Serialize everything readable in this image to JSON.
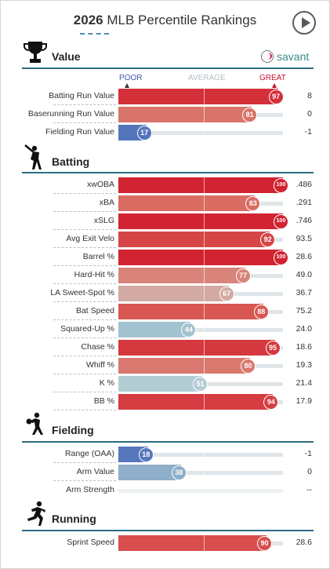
{
  "header": {
    "year": "2026",
    "title": "MLB Percentile Rankings"
  },
  "brand": {
    "name": "savant"
  },
  "legend": {
    "poor": "POOR",
    "average": "AVERAGE",
    "great": "GREAT"
  },
  "colors": {
    "great": "#d22d3e",
    "poor": "#4d6fb8",
    "average": "#bcd6dd",
    "accent": "#2b6c84"
  },
  "sections": [
    {
      "title": "Value",
      "icon": "trophy-icon",
      "rows": [
        {
          "label": "Batting Run Value",
          "percentile": 97,
          "value": "8"
        },
        {
          "label": "Baserunning Run Value",
          "percentile": 81,
          "value": "0"
        },
        {
          "label": "Fielding Run Value",
          "percentile": 17,
          "value": "-1"
        }
      ]
    },
    {
      "title": "Batting",
      "icon": "batter-icon",
      "rows": [
        {
          "label": "xwOBA",
          "percentile": 100,
          "value": ".486"
        },
        {
          "label": "xBA",
          "percentile": 83,
          "value": ".291"
        },
        {
          "label": "xSLG",
          "percentile": 100,
          "value": ".746"
        },
        {
          "label": "Avg Exit Velo",
          "percentile": 92,
          "value": "93.5"
        },
        {
          "label": "Barrel %",
          "percentile": 100,
          "value": "28.6"
        },
        {
          "label": "Hard-Hit %",
          "percentile": 77,
          "value": "49.0"
        },
        {
          "label": "LA Sweet-Spot %",
          "percentile": 67,
          "value": "36.7"
        },
        {
          "label": "Bat Speed",
          "percentile": 88,
          "value": "75.2"
        },
        {
          "label": "Squared-Up %",
          "percentile": 44,
          "value": "24.0"
        },
        {
          "label": "Chase %",
          "percentile": 95,
          "value": "18.6"
        },
        {
          "label": "Whiff %",
          "percentile": 80,
          "value": "19.3"
        },
        {
          "label": "K %",
          "percentile": 51,
          "value": "21.4"
        },
        {
          "label": "BB %",
          "percentile": 94,
          "value": "17.9"
        }
      ]
    },
    {
      "title": "Fielding",
      "icon": "fielder-icon",
      "rows": [
        {
          "label": "Range (OAA)",
          "percentile": 18,
          "value": "-1"
        },
        {
          "label": "Arm Value",
          "percentile": 38,
          "value": "0"
        },
        {
          "label": "Arm Strength",
          "percentile": null,
          "value": "--"
        }
      ]
    },
    {
      "title": "Running",
      "icon": "runner-icon",
      "rows": [
        {
          "label": "Sprint Speed",
          "percentile": 90,
          "value": "28.6"
        }
      ]
    }
  ]
}
